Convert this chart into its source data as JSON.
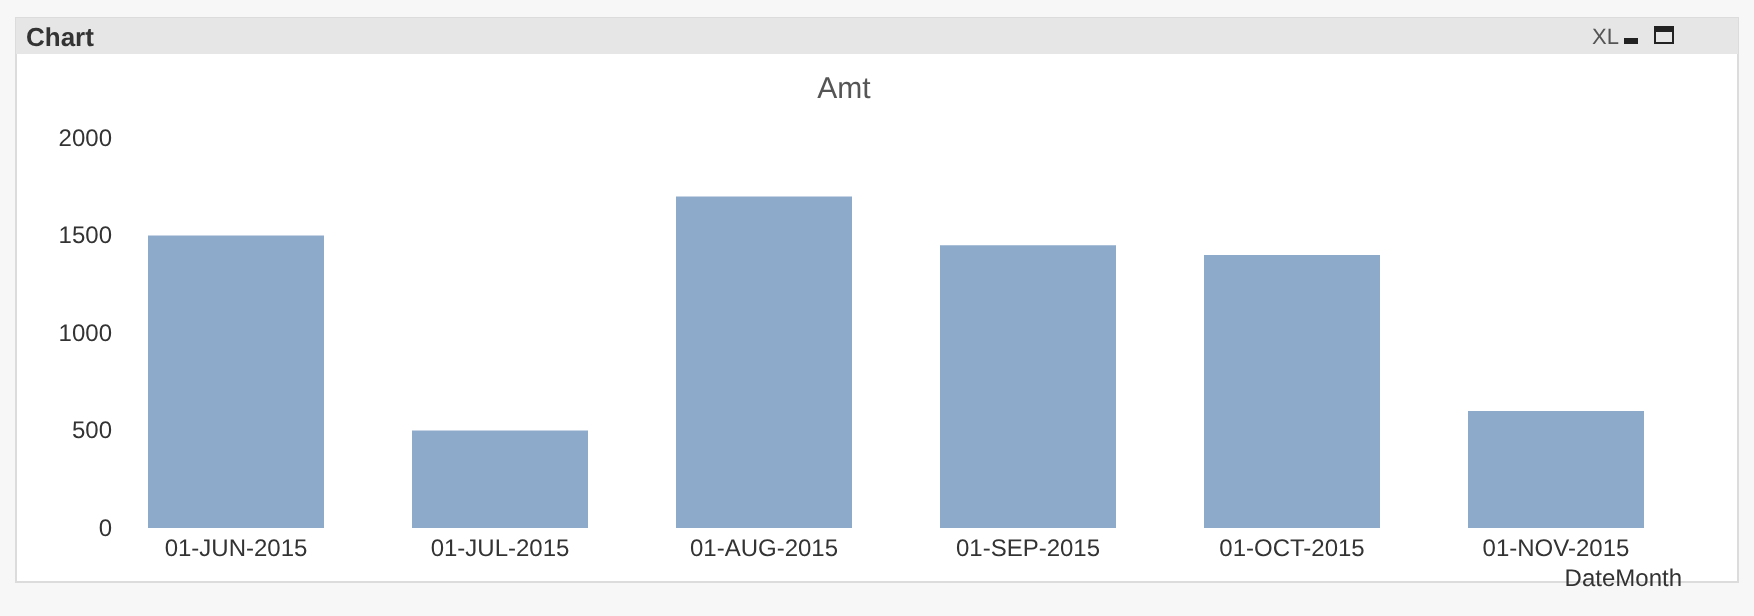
{
  "chart_data": {
    "type": "bar",
    "title": "Amt",
    "xlabel": "DateMonth",
    "annotations": [
      "Chart",
      "XL"
    ],
    "categories": [
      "01-JUN-2015",
      "01-JUL-2015",
      "01-AUG-2015",
      "01-SEP-2015",
      "01-OCT-2015",
      "01-NOV-2015"
    ],
    "values": [
      1500,
      500,
      1700,
      1450,
      1400,
      600
    ],
    "color": "#8eaacb",
    "ylim": [
      0,
      2000
    ],
    "yticks": [
      0,
      500,
      1000,
      1500,
      2000
    ],
    "grid": false
  }
}
